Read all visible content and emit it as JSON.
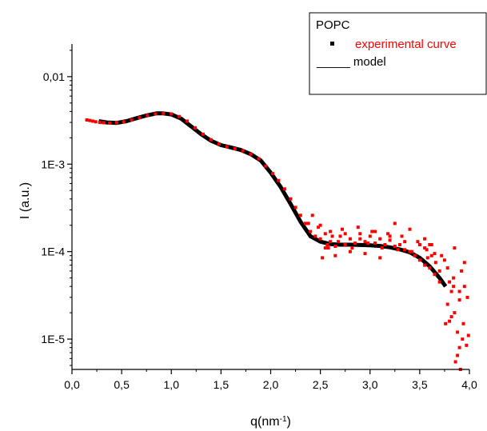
{
  "chart_data": {
    "type": "scatter",
    "title": "",
    "xlabel": "q(nm",
    "xlabel_sup": "-1",
    "xlabel_close": ")",
    "ylabel": "I (a.u.)",
    "xlim": [
      0.0,
      4.0
    ],
    "ylim": [
      4.5e-06,
      0.04
    ],
    "yscale": "log",
    "x_ticks": [
      {
        "value": 0.0,
        "label": "0,0"
      },
      {
        "value": 0.5,
        "label": "0,5"
      },
      {
        "value": 1.0,
        "label": "1,0"
      },
      {
        "value": 1.5,
        "label": "1,5"
      },
      {
        "value": 2.0,
        "label": "2,0"
      },
      {
        "value": 2.5,
        "label": "2,5"
      },
      {
        "value": 3.0,
        "label": "3,0"
      },
      {
        "value": 3.5,
        "label": "3,5"
      },
      {
        "value": 4.0,
        "label": "4,0"
      }
    ],
    "y_ticks": [
      {
        "value": 1e-05,
        "label": "1E-5"
      },
      {
        "value": 0.0001,
        "label": "1E-4"
      },
      {
        "value": 0.001,
        "label": "1E-3"
      },
      {
        "value": 0.01,
        "label": "0,01"
      }
    ],
    "grid": false,
    "legend": {
      "position": "top-right",
      "title": "POPC",
      "entries": [
        {
          "marker": "square",
          "prefix": "",
          "label": "experimental curve",
          "color": "#ff0000"
        },
        {
          "marker": "line",
          "prefix": "_____",
          "label": "model",
          "color": "#000000"
        }
      ]
    },
    "series": [
      {
        "name": "model",
        "style": "line",
        "color": "#000000",
        "x": [
          0.27,
          0.35,
          0.45,
          0.55,
          0.65,
          0.75,
          0.85,
          0.92,
          1.0,
          1.1,
          1.2,
          1.3,
          1.4,
          1.5,
          1.6,
          1.7,
          1.8,
          1.9,
          2.0,
          2.1,
          2.2,
          2.3,
          2.4,
          2.5,
          2.6,
          2.7,
          2.8,
          2.9,
          3.0,
          3.1,
          3.2,
          3.3,
          3.4,
          3.5,
          3.6,
          3.7,
          3.76
        ],
        "y": [
          0.0031,
          0.003,
          0.00296,
          0.0031,
          0.00335,
          0.0036,
          0.0038,
          0.0038,
          0.0037,
          0.0033,
          0.0027,
          0.0022,
          0.00185,
          0.00165,
          0.00155,
          0.00145,
          0.0013,
          0.0011,
          0.0008,
          0.00055,
          0.00035,
          0.00022,
          0.00015,
          0.00013,
          0.000122,
          0.00012,
          0.00012,
          0.000119,
          0.000118,
          0.000116,
          0.000112,
          0.000106,
          9.8e-05,
          8.5e-05,
          6.8e-05,
          5e-05,
          4e-05
        ]
      },
      {
        "name": "experimental curve",
        "style": "points",
        "color": "#ff0000",
        "x": [
          0.15,
          0.18,
          0.21,
          0.24,
          0.28,
          0.32,
          0.38,
          0.45,
          0.52,
          0.6,
          0.68,
          0.76,
          0.84,
          0.92,
          1.0,
          1.08,
          1.16,
          1.24,
          1.32,
          1.4,
          1.48,
          1.56,
          1.64,
          1.72,
          1.8,
          1.88,
          1.95,
          2.02,
          2.08,
          2.14,
          2.2,
          2.25,
          2.3,
          2.35,
          2.4,
          2.45,
          2.5,
          2.5,
          2.55,
          2.6,
          2.6,
          2.65,
          2.7,
          2.75,
          2.8,
          2.85,
          2.9,
          2.95,
          3.0,
          3.05,
          3.1,
          3.15,
          3.2,
          3.25,
          3.3,
          3.35,
          3.4,
          3.45,
          3.5,
          3.55,
          3.6,
          3.65,
          3.7,
          2.55,
          2.65,
          2.72,
          2.8,
          2.88,
          2.95,
          3.02,
          3.1,
          3.18,
          3.25,
          3.32,
          3.4,
          3.48,
          3.55,
          3.62,
          3.7,
          3.75,
          3.8,
          3.85,
          3.9,
          3.92,
          3.95,
          3.98,
          3.78,
          3.82,
          3.88,
          3.85,
          3.9,
          3.94,
          3.88,
          3.82,
          3.93,
          3.86,
          3.97,
          3.91,
          3.8,
          3.84,
          3.76,
          3.6,
          3.65,
          3.55,
          2.48,
          2.42,
          2.38,
          2.62,
          2.58,
          2.68,
          2.75,
          2.82,
          2.9,
          2.98,
          3.05,
          3.12,
          3.2,
          3.28,
          3.35,
          3.42,
          3.5,
          3.58,
          3.66,
          3.72,
          3.78,
          3.84,
          3.9,
          3.95,
          3.99,
          3.62,
          3.57,
          2.52,
          2.57
        ],
        "y": [
          0.0032,
          0.00315,
          0.0031,
          0.00305,
          0.003,
          0.00298,
          0.00295,
          0.00298,
          0.00305,
          0.0032,
          0.0034,
          0.0036,
          0.00375,
          0.0038,
          0.00375,
          0.0035,
          0.0031,
          0.0026,
          0.0022,
          0.0019,
          0.0017,
          0.00158,
          0.0015,
          0.00142,
          0.0013,
          0.00115,
          0.00095,
          0.00078,
          0.00065,
          0.00052,
          0.0004,
          0.00032,
          0.00026,
          0.00021,
          0.00017,
          0.00015,
          0.00014,
          0.0002,
          0.00011,
          0.00013,
          0.00017,
          0.000115,
          0.00015,
          0.00012,
          0.00014,
          0.000125,
          0.00016,
          0.00013,
          0.00015,
          0.000125,
          0.00014,
          0.00012,
          0.000135,
          0.000115,
          0.00012,
          0.000105,
          0.0001,
          9e-05,
          8e-05,
          7e-05,
          6.5e-05,
          5.5e-05,
          4.5e-05,
          0.00016,
          9e-05,
          0.00018,
          0.0001,
          0.00019,
          9.5e-05,
          0.00017,
          8.5e-05,
          0.00016,
          0.00021,
          0.00015,
          0.00018,
          0.00013,
          0.00011,
          0.00012,
          6e-05,
          8e-05,
          4.5e-05,
          0.00011,
          3.5e-05,
          6e-05,
          7.5e-05,
          3e-05,
          2.5e-05,
          1.8e-05,
          1.2e-05,
          2e-05,
          8e-06,
          1.5e-05,
          6.5e-06,
          3.5e-05,
          1e-05,
          5.5e-06,
          8.5e-06,
          4.5e-06,
          1.6e-05,
          5e-05,
          1.5e-05,
          0.00012,
          9.5e-05,
          0.00014,
          0.00019,
          0.00026,
          0.00021,
          0.00015,
          0.00011,
          0.00013,
          0.00016,
          0.00011,
          0.00014,
          0.000125,
          0.00017,
          0.00011,
          0.00015,
          0.000105,
          0.00013,
          0.0001,
          0.00012,
          8.5e-05,
          7.5e-05,
          9e-05,
          6.5e-05,
          4e-05,
          2.8e-05,
          4e-05,
          1.1e-05,
          9e-05,
          0.000105,
          8.5e-05,
          0.00012
        ]
      }
    ]
  }
}
